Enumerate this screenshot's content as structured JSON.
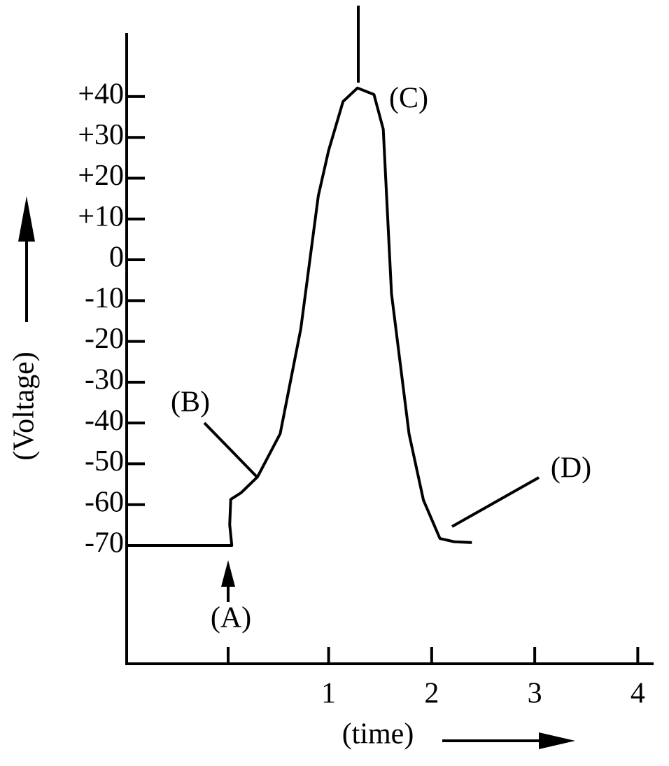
{
  "chart_data": {
    "type": "line",
    "y_label": "(Voltage)",
    "x_label": "(time)",
    "x": [
      -0.96,
      0.06,
      0.04,
      0.05,
      0.15,
      0.31,
      0.53,
      0.73,
      0.9,
      1.0,
      1.14,
      1.28,
      1.44,
      1.53,
      1.61,
      1.78,
      1.92,
      2.08,
      2.22,
      2.39
    ],
    "series": [
      {
        "color": "#000000",
        "values": [
          -70,
          -70,
          -64.9,
          -58.7,
          -57.1,
          -53.2,
          -42.6,
          -16.9,
          15.7,
          26.8,
          38.8,
          42.1,
          40.5,
          32.0,
          -8.3,
          -42.6,
          -58.9,
          -68.3,
          -69.1,
          -69.3
        ]
      }
    ],
    "xlim": [
      -0.96,
      4.14
    ],
    "ylim": [
      -99,
      55.6
    ],
    "xticks": [
      1,
      2,
      3,
      4
    ],
    "yticks": [
      {
        "value": 40,
        "label": "+40"
      },
      {
        "value": 30,
        "label": "+30"
      },
      {
        "value": 20,
        "label": "+20"
      },
      {
        "value": 10,
        "label": "+10"
      },
      0,
      -10,
      -20,
      -30,
      -40,
      -50,
      -60,
      -70
    ],
    "annotations": [
      "(A)",
      "(B)",
      "(C)",
      "(D)"
    ]
  }
}
